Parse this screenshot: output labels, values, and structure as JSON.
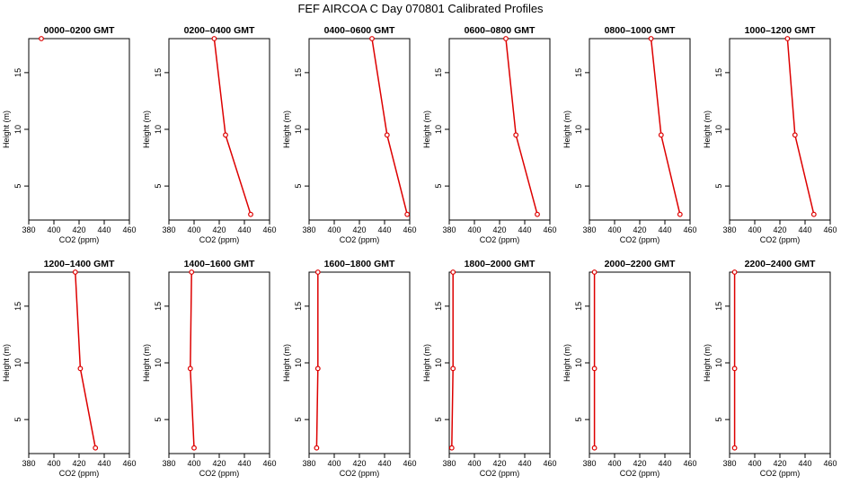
{
  "title": "FEF AIRCOA C  Day 070801  Calibrated Profiles",
  "colors": {
    "series": "#dd0000",
    "axis": "#000000"
  },
  "chart_data": [
    {
      "type": "line",
      "title": "0000–0200 GMT",
      "xlabel": "CO2 (ppm)",
      "ylabel": "Height (m)",
      "xlim": [
        380,
        460
      ],
      "ylim": [
        2,
        18
      ],
      "xticks": [
        "380",
        "400",
        "420",
        "440",
        "460"
      ],
      "yticks": [
        "5",
        "10",
        "15"
      ],
      "points": [
        {
          "x": 390,
          "y": 18
        }
      ]
    },
    {
      "type": "line",
      "title": "0200–0400 GMT",
      "xlabel": "CO2 (ppm)",
      "ylabel": "Height (m)",
      "xlim": [
        380,
        460
      ],
      "ylim": [
        2,
        18
      ],
      "xticks": [
        "380",
        "400",
        "420",
        "440",
        "460"
      ],
      "yticks": [
        "5",
        "10",
        "15"
      ],
      "points": [
        {
          "x": 416,
          "y": 18
        },
        {
          "x": 425,
          "y": 9.5
        },
        {
          "x": 445,
          "y": 2.5
        }
      ]
    },
    {
      "type": "line",
      "title": "0400–0600 GMT",
      "xlabel": "CO2 (ppm)",
      "ylabel": "Height (m)",
      "xlim": [
        380,
        460
      ],
      "ylim": [
        2,
        18
      ],
      "xticks": [
        "380",
        "400",
        "420",
        "440",
        "460"
      ],
      "yticks": [
        "5",
        "10",
        "15"
      ],
      "points": [
        {
          "x": 430,
          "y": 18
        },
        {
          "x": 442,
          "y": 9.5
        },
        {
          "x": 458,
          "y": 2.5
        }
      ]
    },
    {
      "type": "line",
      "title": "0600–0800 GMT",
      "xlabel": "CO2 (ppm)",
      "ylabel": "Height (m)",
      "xlim": [
        380,
        460
      ],
      "ylim": [
        2,
        18
      ],
      "xticks": [
        "380",
        "400",
        "420",
        "440",
        "460"
      ],
      "yticks": [
        "5",
        "10",
        "15"
      ],
      "points": [
        {
          "x": 425,
          "y": 18
        },
        {
          "x": 433,
          "y": 9.5
        },
        {
          "x": 450,
          "y": 2.5
        }
      ]
    },
    {
      "type": "line",
      "title": "0800–1000 GMT",
      "xlabel": "CO2 (ppm)",
      "ylabel": "Height (m)",
      "xlim": [
        380,
        460
      ],
      "ylim": [
        2,
        18
      ],
      "xticks": [
        "380",
        "400",
        "420",
        "440",
        "460"
      ],
      "yticks": [
        "5",
        "10",
        "15"
      ],
      "points": [
        {
          "x": 429,
          "y": 18
        },
        {
          "x": 437,
          "y": 9.5
        },
        {
          "x": 452,
          "y": 2.5
        }
      ]
    },
    {
      "type": "line",
      "title": "1000–1200 GMT",
      "xlabel": "CO2 (ppm)",
      "ylabel": "Height (m)",
      "xlim": [
        380,
        460
      ],
      "ylim": [
        2,
        18
      ],
      "xticks": [
        "380",
        "400",
        "420",
        "440",
        "460"
      ],
      "yticks": [
        "5",
        "10",
        "15"
      ],
      "points": [
        {
          "x": 426,
          "y": 18
        },
        {
          "x": 432,
          "y": 9.5
        },
        {
          "x": 447,
          "y": 2.5
        }
      ]
    },
    {
      "type": "line",
      "title": "1200–1400 GMT",
      "xlabel": "CO2 (ppm)",
      "ylabel": "Height (m)",
      "xlim": [
        380,
        460
      ],
      "ylim": [
        2,
        18
      ],
      "xticks": [
        "380",
        "400",
        "420",
        "440",
        "460"
      ],
      "yticks": [
        "5",
        "10",
        "15"
      ],
      "points": [
        {
          "x": 417,
          "y": 18
        },
        {
          "x": 421,
          "y": 9.5
        },
        {
          "x": 433,
          "y": 2.5
        }
      ]
    },
    {
      "type": "line",
      "title": "1400–1600 GMT",
      "xlabel": "CO2 (ppm)",
      "ylabel": "Height (m)",
      "xlim": [
        380,
        460
      ],
      "ylim": [
        2,
        18
      ],
      "xticks": [
        "380",
        "400",
        "420",
        "440",
        "460"
      ],
      "yticks": [
        "5",
        "10",
        "15"
      ],
      "points": [
        {
          "x": 398,
          "y": 18
        },
        {
          "x": 397,
          "y": 9.5
        },
        {
          "x": 400,
          "y": 2.5
        }
      ]
    },
    {
      "type": "line",
      "title": "1600–1800 GMT",
      "xlabel": "CO2 (ppm)",
      "ylabel": "Height (m)",
      "xlim": [
        380,
        460
      ],
      "ylim": [
        2,
        18
      ],
      "xticks": [
        "380",
        "400",
        "420",
        "440",
        "460"
      ],
      "yticks": [
        "5",
        "10",
        "15"
      ],
      "points": [
        {
          "x": 387,
          "y": 18
        },
        {
          "x": 387,
          "y": 9.5
        },
        {
          "x": 386,
          "y": 2.5
        }
      ]
    },
    {
      "type": "line",
      "title": "1800–2000 GMT",
      "xlabel": "CO2 (ppm)",
      "ylabel": "Height (m)",
      "xlim": [
        380,
        460
      ],
      "ylim": [
        2,
        18
      ],
      "xticks": [
        "380",
        "400",
        "420",
        "440",
        "460"
      ],
      "yticks": [
        "5",
        "10",
        "15"
      ],
      "points": [
        {
          "x": 383,
          "y": 18
        },
        {
          "x": 383,
          "y": 9.5
        },
        {
          "x": 382,
          "y": 2.5
        }
      ]
    },
    {
      "type": "line",
      "title": "2000–2200 GMT",
      "xlabel": "CO2 (ppm)",
      "ylabel": "Height (m)",
      "xlim": [
        380,
        460
      ],
      "ylim": [
        2,
        18
      ],
      "xticks": [
        "380",
        "400",
        "420",
        "440",
        "460"
      ],
      "yticks": [
        "5",
        "10",
        "15"
      ],
      "points": [
        {
          "x": 384,
          "y": 18
        },
        {
          "x": 384,
          "y": 9.5
        },
        {
          "x": 384,
          "y": 2.5
        }
      ]
    },
    {
      "type": "line",
      "title": "2200–2400 GMT",
      "xlabel": "CO2 (ppm)",
      "ylabel": "Height (m)",
      "xlim": [
        380,
        460
      ],
      "ylim": [
        2,
        18
      ],
      "xticks": [
        "380",
        "400",
        "420",
        "440",
        "460"
      ],
      "yticks": [
        "5",
        "10",
        "15"
      ],
      "points": [
        {
          "x": 384,
          "y": 18
        },
        {
          "x": 384,
          "y": 9.5
        },
        {
          "x": 384,
          "y": 2.5
        }
      ]
    }
  ]
}
